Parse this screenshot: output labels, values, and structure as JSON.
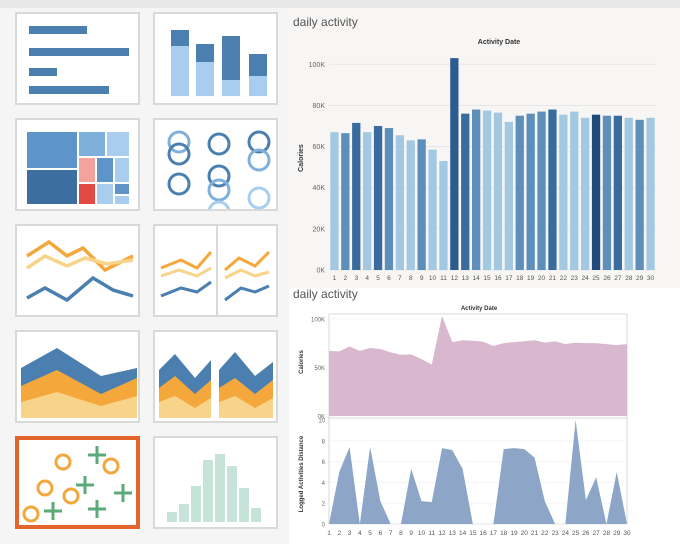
{
  "gallery": {
    "items": [
      {
        "name": "thumb-horizontal-bars",
        "icon": "horizontal-bar-chart-icon"
      },
      {
        "name": "thumb-stacked-bars",
        "icon": "stacked-bar-chart-icon"
      },
      {
        "name": "thumb-treemap",
        "icon": "treemap-icon"
      },
      {
        "name": "thumb-circle-views",
        "icon": "circle-view-icon"
      },
      {
        "name": "thumb-lines-continuous",
        "icon": "line-chart-icon"
      },
      {
        "name": "thumb-lines-discrete",
        "icon": "line-chart-discrete-icon"
      },
      {
        "name": "thumb-area-continuous",
        "icon": "area-chart-icon"
      },
      {
        "name": "thumb-area-discrete",
        "icon": "area-chart-discrete-icon"
      },
      {
        "name": "thumb-scatter",
        "icon": "scatter-plot-icon",
        "selected": true
      },
      {
        "name": "thumb-histogram",
        "icon": "histogram-icon"
      }
    ],
    "selected_color": "#e3652b"
  },
  "chart_data": [
    {
      "type": "bar",
      "sheet_title": "daily activity",
      "title": "Activity Date",
      "ylabel": "Calories",
      "ylim": [
        0,
        105000
      ],
      "y_ticks": [
        "0K",
        "20K",
        "40K",
        "60K",
        "80K",
        "100K"
      ],
      "categories": [
        "1",
        "2",
        "3",
        "4",
        "5",
        "6",
        "7",
        "8",
        "9",
        "10",
        "11",
        "12",
        "13",
        "14",
        "15",
        "16",
        "17",
        "18",
        "19",
        "20",
        "21",
        "22",
        "23",
        "24",
        "25",
        "26",
        "27",
        "28",
        "29",
        "30"
      ],
      "values": [
        67000,
        66500,
        71500,
        67000,
        70000,
        69000,
        65500,
        63000,
        63500,
        58500,
        53000,
        103000,
        76000,
        78000,
        77500,
        76500,
        72000,
        75000,
        76000,
        77000,
        78000,
        75500,
        77000,
        74000,
        75500,
        75000,
        75000,
        74000,
        73000,
        74000
      ],
      "colors": [
        "#a3c8e1",
        "#5d8fba",
        "#3a6b9e",
        "#a3c8e1",
        "#3a6b9e",
        "#5d8fba",
        "#a3c8e1",
        "#a3c8e1",
        "#5d8fba",
        "#a3c8e1",
        "#a3c8e1",
        "#2c5c8e",
        "#3a6b9e",
        "#5d8fba",
        "#a3c8e1",
        "#a3c8e1",
        "#a3c8e1",
        "#5d8fba",
        "#5d8fba",
        "#5d8fba",
        "#3a6b9e",
        "#a3c8e1",
        "#a3c8e1",
        "#a3c8e1",
        "#1f4a7a",
        "#5d8fba",
        "#3a6b9e",
        "#a3c8e1",
        "#5d8fba",
        "#a3c8e1"
      ],
      "grid": true
    },
    {
      "type": "area",
      "sheet_title": "daily activity",
      "title": "Activity Date",
      "x": [
        "1",
        "2",
        "3",
        "4",
        "5",
        "6",
        "7",
        "8",
        "9",
        "10",
        "11",
        "12",
        "13",
        "14",
        "15",
        "16",
        "17",
        "18",
        "19",
        "20",
        "21",
        "22",
        "23",
        "24",
        "25",
        "26",
        "27",
        "28",
        "29",
        "30"
      ],
      "panes": [
        {
          "ylabel": "Calories",
          "ylim": [
            0,
            105000
          ],
          "y_ticks": [
            "0K",
            "50K",
            "100K"
          ],
          "color": "#d9b8cf",
          "values": [
            67000,
            66500,
            71500,
            67000,
            70000,
            69000,
            65500,
            63000,
            63500,
            58500,
            53000,
            103000,
            76000,
            78000,
            77500,
            76500,
            72000,
            75000,
            76000,
            77000,
            78000,
            75500,
            77000,
            74000,
            75500,
            75000,
            75000,
            74000,
            73000,
            74000
          ]
        },
        {
          "ylabel": "Logged Activities Distance",
          "ylim": [
            0,
            10
          ],
          "y_ticks": [
            "0",
            "2",
            "4",
            "6",
            "8",
            "10"
          ],
          "color": "#8da6c8",
          "values": [
            0,
            5,
            7.4,
            0,
            7.4,
            2.2,
            0,
            0,
            5.3,
            2.2,
            2.1,
            7.3,
            7.1,
            5.3,
            0,
            0,
            0,
            7.2,
            7.3,
            7.2,
            6.4,
            2.2,
            0,
            0,
            10,
            2.3,
            4.5,
            0,
            5,
            0
          ]
        }
      ]
    }
  ]
}
